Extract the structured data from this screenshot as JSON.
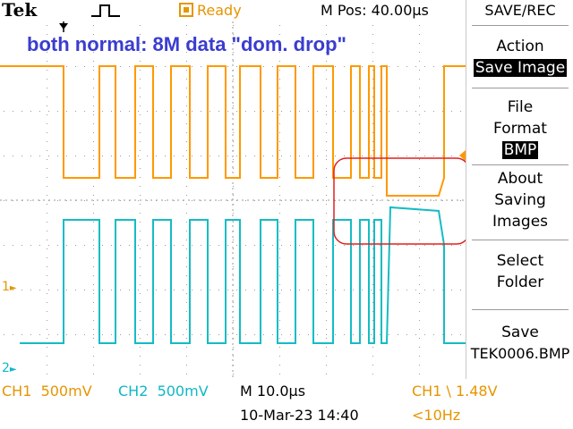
{
  "brand": "Tek",
  "acquisition": {
    "status": "Ready",
    "mpos": "M Pos: 40.00µs"
  },
  "screen_title": "both normal: 8M data \"dom. drop\"",
  "side_menu": {
    "title": "SAVE/REC",
    "action_label": "Action",
    "action_value": "Save Image",
    "file_format_l1": "File",
    "file_format_l2": "Format",
    "file_format_value": "BMP",
    "about_l1": "About",
    "about_l2": "Saving",
    "about_l3": "Images",
    "select_l1": "Select",
    "select_l2": "Folder",
    "save_l1": "Save",
    "save_l2": "TEK0006.BMP"
  },
  "bottom": {
    "ch1_label": "CH1",
    "ch1_scale": "500mV",
    "ch2_label": "CH2",
    "ch2_scale": "500mV",
    "timebase": "M 10.0µs",
    "trigger_ch": "CH1",
    "trigger_symbol": "\\",
    "trigger_level": "1.48V",
    "date": "10-Mar-23 14:40",
    "freq": "<10Hz"
  },
  "markers": {
    "ch1": "1",
    "ch2": "2"
  },
  "colors": {
    "ch1": "#ff9900",
    "ch2": "#15bcc4",
    "title": "#3a3cd0",
    "annotation": "#e02020",
    "grid": "#9a9a9a"
  }
}
